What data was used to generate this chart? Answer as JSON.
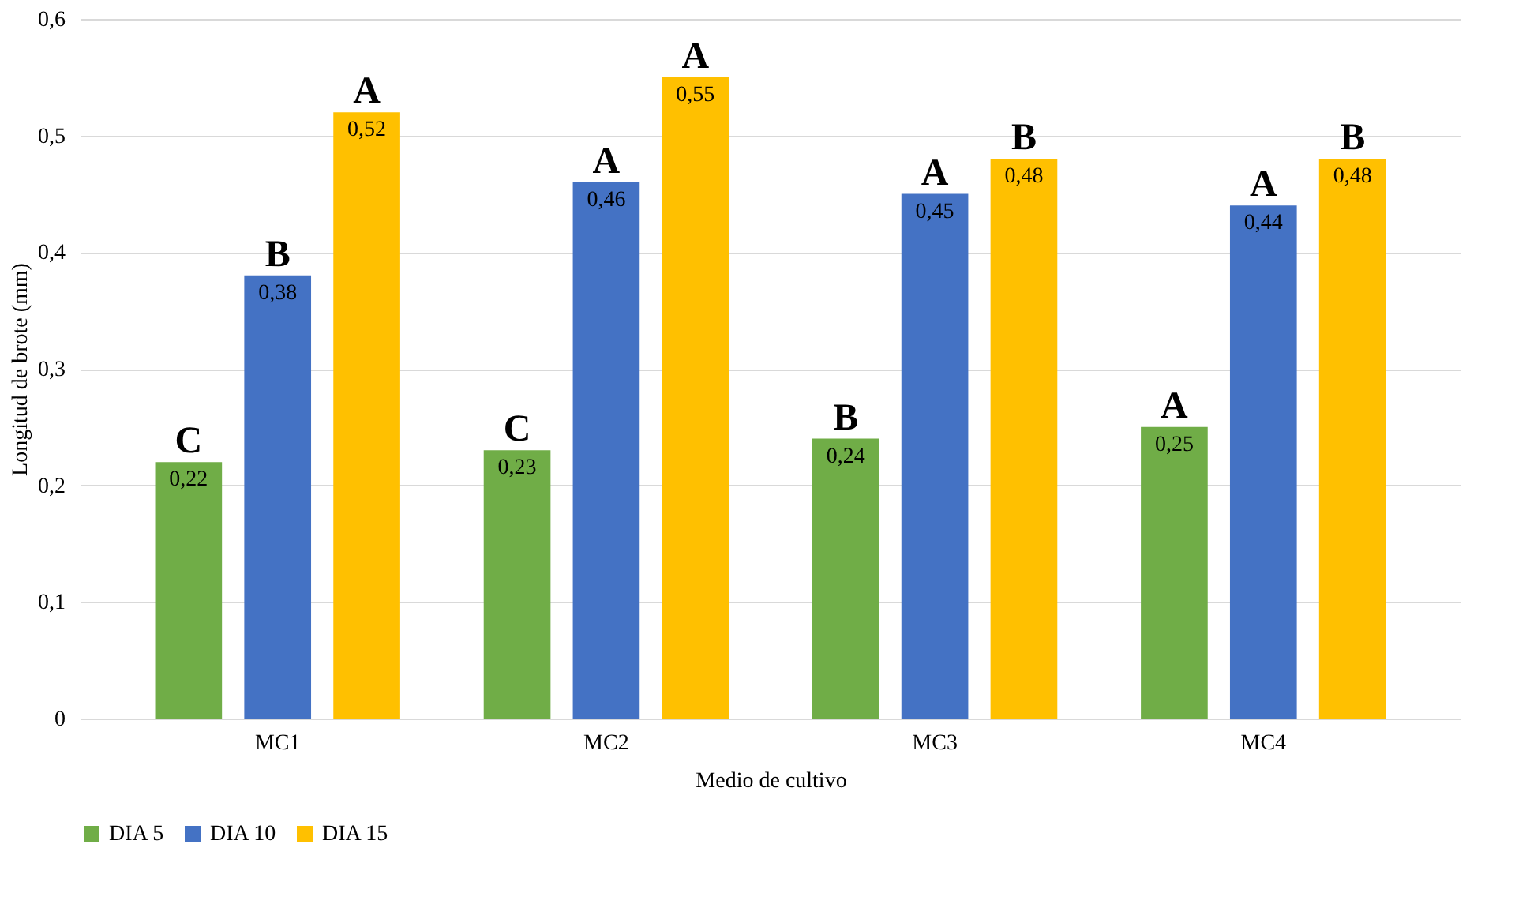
{
  "chart_data": {
    "type": "bar",
    "xlabel": "Medio de cultivo",
    "ylabel": "Longitud de brote (mm)",
    "categories": [
      "MC1",
      "MC2",
      "MC3",
      "MC4"
    ],
    "series": [
      {
        "name": "DIA 5",
        "color": "#70ad47",
        "values": [
          0.22,
          0.23,
          0.24,
          0.25
        ],
        "value_labels": [
          "0,22",
          "0,23",
          "0,24",
          "0,25"
        ]
      },
      {
        "name": "DIA 10",
        "color": "#4472c4",
        "values": [
          0.38,
          0.46,
          0.45,
          0.44
        ],
        "value_labels": [
          "0,38",
          "0,46",
          "0,45",
          "0,44"
        ]
      },
      {
        "name": "DIA 15",
        "color": "#ffc000",
        "values": [
          0.52,
          0.55,
          0.48,
          0.48
        ],
        "value_labels": [
          "0,52",
          "0,55",
          "0,48",
          "0,48"
        ]
      }
    ],
    "ylim": [
      0,
      0.6
    ],
    "yticks": [
      0,
      {
        "value": 0.1,
        "label": "0,1"
      },
      {
        "value": 0.2,
        "label": "0,2"
      },
      {
        "value": 0.3,
        "label": "0,3"
      },
      {
        "value": 0.4,
        "label": "0,4"
      },
      {
        "value": 0.5,
        "label": "0,5"
      },
      {
        "value": 0.6,
        "label": "0,6"
      }
    ],
    "annotations": [
      "C",
      "B",
      "A",
      "C",
      "A",
      "A",
      "B",
      "A",
      "B",
      "A",
      "A",
      "B"
    ],
    "grid": "y",
    "legend": "bottom"
  }
}
